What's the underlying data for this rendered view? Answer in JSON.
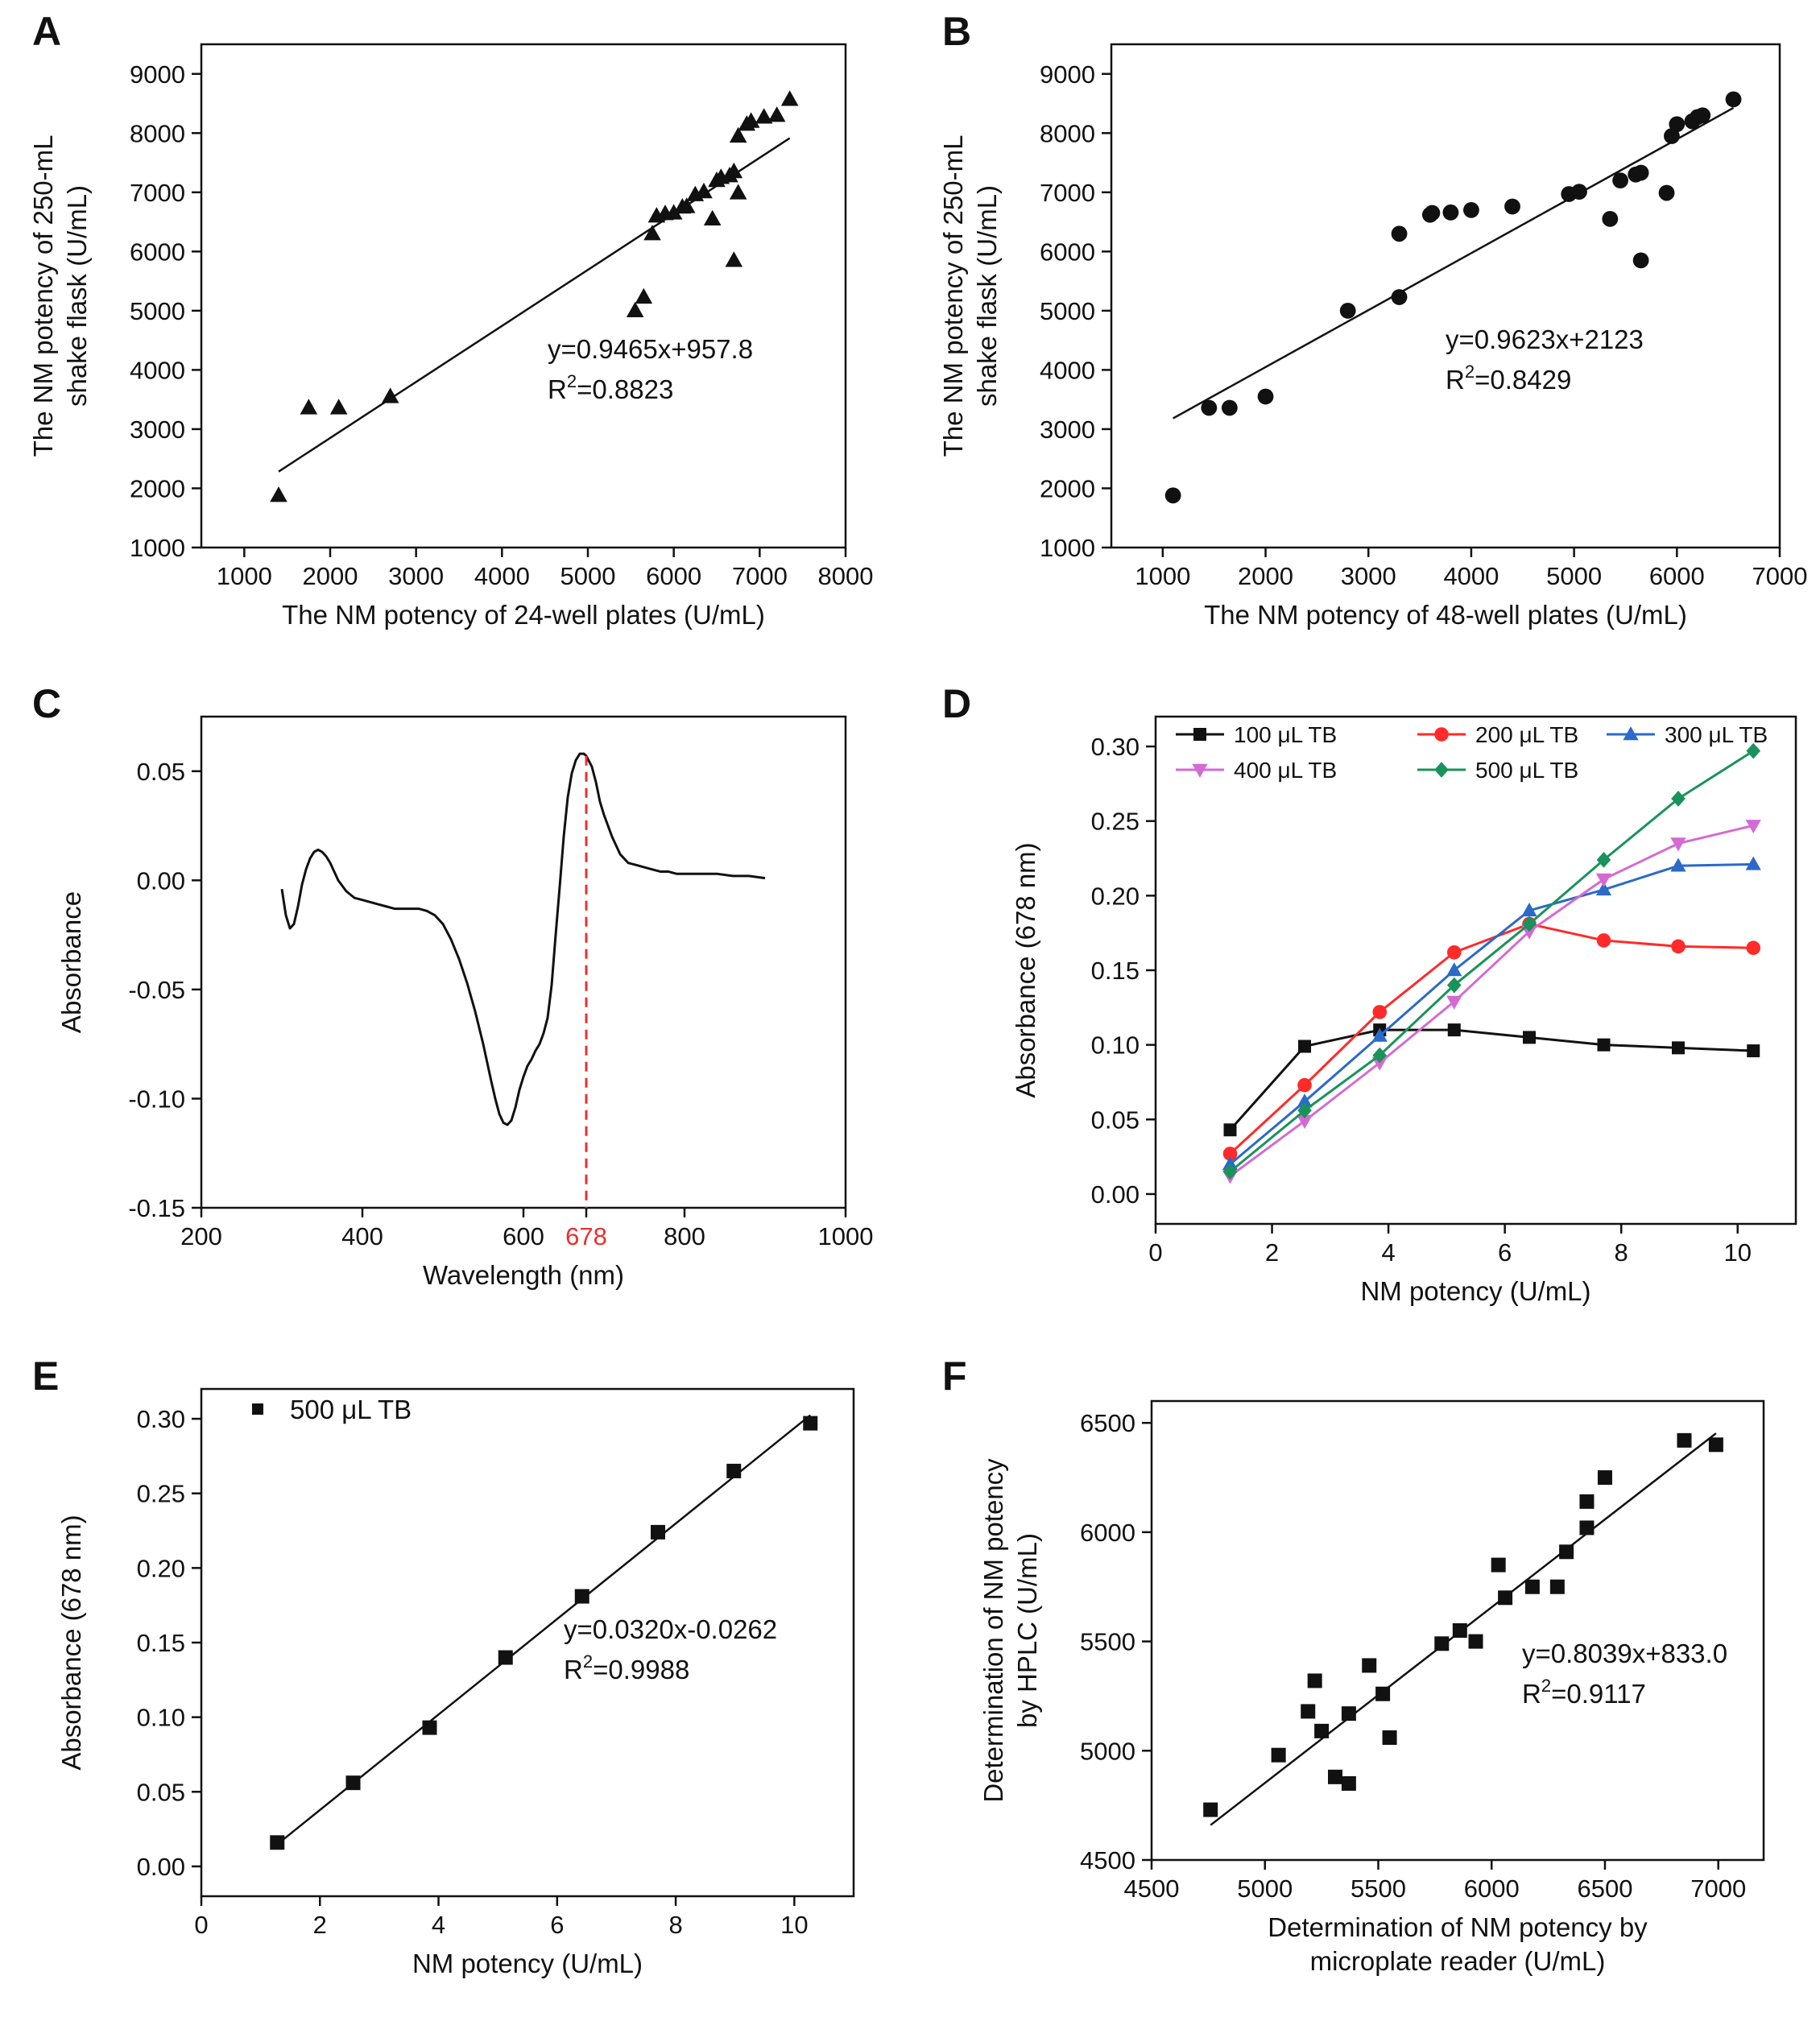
{
  "chart_data": [
    {
      "id": "A",
      "type": "scatter",
      "panel_label": "A",
      "xlabel": "The NM potency of 24-well plates (U/mL)",
      "ylabel": [
        "The NM potency of 250-mL",
        "shake flask (U/mL)"
      ],
      "xlim": [
        500,
        8000
      ],
      "ylim": [
        1000,
        9500
      ],
      "xticks": [
        1000,
        2000,
        3000,
        4000,
        5000,
        6000,
        7000,
        8000
      ],
      "yticks": [
        1000,
        2000,
        3000,
        4000,
        5000,
        6000,
        7000,
        8000,
        9000
      ],
      "marker": "triangle",
      "points": [
        [
          1400,
          1880
        ],
        [
          1750,
          3360
        ],
        [
          2100,
          3360
        ],
        [
          2700,
          3550
        ],
        [
          5550,
          5000
        ],
        [
          5650,
          5230
        ],
        [
          5750,
          6300
        ],
        [
          5800,
          6600
        ],
        [
          5900,
          6640
        ],
        [
          6000,
          6650
        ],
        [
          6100,
          6750
        ],
        [
          6150,
          6760
        ],
        [
          6250,
          6960
        ],
        [
          6350,
          7010
        ],
        [
          6450,
          6550
        ],
        [
          6500,
          7200
        ],
        [
          6550,
          7250
        ],
        [
          6650,
          7280
        ],
        [
          6700,
          7350
        ],
        [
          6700,
          5850
        ],
        [
          6750,
          7950
        ],
        [
          6750,
          6990
        ],
        [
          6850,
          8150
        ],
        [
          6900,
          8200
        ],
        [
          7050,
          8270
        ],
        [
          7200,
          8300
        ],
        [
          7350,
          8570
        ]
      ],
      "fit": {
        "x": [
          1400,
          7350
        ],
        "slope": 0.9465,
        "intercept": 957.8
      },
      "equation": "y=0.9465x+957.8",
      "r2_prefix": "R",
      "r2_sup": "2",
      "r2_value": "=0.8823"
    },
    {
      "id": "B",
      "type": "scatter",
      "panel_label": "B",
      "xlabel": "The NM potency of 48-well plates (U/mL)",
      "ylabel": [
        "The NM potency of 250-mL",
        "shake flask (U/mL)"
      ],
      "xlim": [
        500,
        7000
      ],
      "ylim": [
        1000,
        9500
      ],
      "xticks": [
        1000,
        2000,
        3000,
        4000,
        5000,
        6000,
        7000
      ],
      "yticks": [
        1000,
        2000,
        3000,
        4000,
        5000,
        6000,
        7000,
        8000,
        9000
      ],
      "marker": "circle",
      "points": [
        [
          1100,
          1880
        ],
        [
          1450,
          3360
        ],
        [
          1650,
          3360
        ],
        [
          2000,
          3550
        ],
        [
          2800,
          5000
        ],
        [
          3300,
          5230
        ],
        [
          3300,
          6300
        ],
        [
          3600,
          6620
        ],
        [
          3620,
          6650
        ],
        [
          3800,
          6660
        ],
        [
          4000,
          6700
        ],
        [
          4400,
          6760
        ],
        [
          4950,
          6970
        ],
        [
          5050,
          7010
        ],
        [
          5350,
          6550
        ],
        [
          5450,
          7200
        ],
        [
          5600,
          7300
        ],
        [
          5650,
          7330
        ],
        [
          5650,
          5850
        ],
        [
          5900,
          6990
        ],
        [
          5950,
          7950
        ],
        [
          6000,
          8150
        ],
        [
          6150,
          8200
        ],
        [
          6200,
          8270
        ],
        [
          6250,
          8300
        ],
        [
          6550,
          8570
        ]
      ],
      "fit": {
        "x": [
          1100,
          6550
        ],
        "slope": 0.9623,
        "intercept": 2123
      },
      "equation": "y=0.9623x+2123",
      "r2_prefix": "R",
      "r2_sup": "2",
      "r2_value": "=0.8429"
    },
    {
      "id": "C",
      "type": "line",
      "panel_label": "C",
      "xlabel": "Wavelength (nm)",
      "ylabel": [
        "Absorbance"
      ],
      "xlim": [
        200,
        1000
      ],
      "ylim": [
        -0.15,
        0.075
      ],
      "xticks": [
        200,
        400,
        600,
        678,
        800,
        1000
      ],
      "yticks": [
        -0.15,
        -0.1,
        -0.05,
        0.0,
        0.05
      ],
      "ytick_labels": [
        "-0.15",
        "-0.10",
        "-0.05",
        "0.00",
        "0.05"
      ],
      "highlight": {
        "x": 678,
        "label": "678",
        "color": "#e8312f"
      },
      "line_color": "#111111",
      "x": [
        300,
        305,
        310,
        315,
        320,
        325,
        330,
        335,
        340,
        345,
        350,
        355,
        360,
        365,
        370,
        380,
        390,
        400,
        410,
        420,
        430,
        440,
        450,
        460,
        470,
        480,
        490,
        500,
        510,
        520,
        530,
        540,
        550,
        560,
        565,
        570,
        575,
        580,
        585,
        590,
        595,
        600,
        605,
        610,
        615,
        620,
        625,
        630,
        635,
        640,
        645,
        650,
        655,
        660,
        665,
        670,
        675,
        678,
        685,
        690,
        695,
        700,
        710,
        720,
        730,
        740,
        750,
        760,
        770,
        780,
        790,
        800,
        820,
        840,
        860,
        880,
        900
      ],
      "y": [
        -0.004,
        -0.016,
        -0.022,
        -0.02,
        -0.012,
        -0.002,
        0.005,
        0.01,
        0.013,
        0.014,
        0.013,
        0.011,
        0.008,
        0.004,
        0.0,
        -0.005,
        -0.008,
        -0.009,
        -0.01,
        -0.011,
        -0.012,
        -0.013,
        -0.013,
        -0.013,
        -0.013,
        -0.014,
        -0.016,
        -0.02,
        -0.027,
        -0.036,
        -0.047,
        -0.06,
        -0.075,
        -0.092,
        -0.1,
        -0.107,
        -0.111,
        -0.112,
        -0.11,
        -0.104,
        -0.096,
        -0.09,
        -0.085,
        -0.082,
        -0.078,
        -0.075,
        -0.07,
        -0.063,
        -0.048,
        -0.025,
        -0.003,
        0.02,
        0.038,
        0.049,
        0.055,
        0.058,
        0.058,
        0.057,
        0.052,
        0.045,
        0.036,
        0.03,
        0.02,
        0.012,
        0.008,
        0.007,
        0.006,
        0.005,
        0.004,
        0.004,
        0.003,
        0.003,
        0.003,
        0.003,
        0.002,
        0.002,
        0.001
      ]
    },
    {
      "id": "D",
      "type": "line",
      "panel_label": "D",
      "xlabel": "NM potency (U/mL)",
      "ylabel": [
        "Absorbance (678 nm)"
      ],
      "xlim": [
        0,
        11
      ],
      "ylim": [
        -0.02,
        0.32
      ],
      "xticks": [
        0,
        2,
        4,
        6,
        8,
        10
      ],
      "yticks": [
        0.0,
        0.05,
        0.1,
        0.15,
        0.2,
        0.25,
        0.3
      ],
      "ytick_labels": [
        "0.00",
        "0.05",
        "0.10",
        "0.15",
        "0.20",
        "0.25",
        "0.30"
      ],
      "x": [
        1.28,
        2.56,
        3.85,
        5.13,
        6.42,
        7.7,
        8.98,
        10.27
      ],
      "series": [
        {
          "name": "100 μL TB",
          "color": "#111111",
          "marker": "square",
          "values": [
            0.043,
            0.099,
            0.11,
            0.11,
            0.105,
            0.1,
            0.098,
            0.096
          ]
        },
        {
          "name": "200 μL TB",
          "color": "#ff2a2a",
          "marker": "circle",
          "values": [
            0.027,
            0.073,
            0.122,
            0.162,
            0.181,
            0.17,
            0.166,
            0.165
          ]
        },
        {
          "name": "300 μL TB",
          "color": "#2a6ac8",
          "marker": "triangle",
          "values": [
            0.02,
            0.062,
            0.106,
            0.15,
            0.19,
            0.204,
            0.22,
            0.221
          ]
        },
        {
          "name": "400 μL TB",
          "color": "#d46ad4",
          "marker": "triangle-down",
          "values": [
            0.012,
            0.049,
            0.088,
            0.129,
            0.176,
            0.211,
            0.235,
            0.247
          ]
        },
        {
          "name": "500 μL TB",
          "color": "#19935a",
          "marker": "diamond",
          "values": [
            0.015,
            0.056,
            0.093,
            0.14,
            0.181,
            0.224,
            0.265,
            0.297
          ]
        }
      ]
    },
    {
      "id": "E",
      "type": "scatter",
      "panel_label": "E",
      "xlabel": "NM potency (U/mL)",
      "ylabel": [
        "Absorbance (678 nm)"
      ],
      "xlim": [
        0,
        11
      ],
      "ylim": [
        -0.02,
        0.32
      ],
      "xticks": [
        0,
        2,
        4,
        6,
        8,
        10
      ],
      "yticks": [
        0.0,
        0.05,
        0.1,
        0.15,
        0.2,
        0.25,
        0.3
      ],
      "ytick_labels": [
        "0.00",
        "0.05",
        "0.10",
        "0.15",
        "0.20",
        "0.25",
        "0.30"
      ],
      "marker": "square",
      "legend": "500 μL TB",
      "points": [
        [
          1.28,
          0.016
        ],
        [
          2.56,
          0.056
        ],
        [
          3.85,
          0.093
        ],
        [
          5.13,
          0.14
        ],
        [
          6.42,
          0.181
        ],
        [
          7.7,
          0.224
        ],
        [
          8.98,
          0.265
        ],
        [
          10.27,
          0.297
        ]
      ],
      "fit": {
        "x": [
          1.28,
          10.27
        ],
        "slope": 0.032,
        "intercept": -0.0262
      },
      "equation": "y=0.0320x-0.0262",
      "r2_prefix": "R",
      "r2_sup": "2",
      "r2_value": "=0.9988"
    },
    {
      "id": "F",
      "type": "scatter",
      "panel_label": "F",
      "xlabel": [
        "Determination of NM potency by",
        "microplate reader (U/mL)"
      ],
      "ylabel": [
        "Determination of NM potency",
        "by HPLC (U/mL)"
      ],
      "xlim": [
        4500,
        7200
      ],
      "ylim": [
        4500,
        6600
      ],
      "xticks": [
        4500,
        5000,
        5500,
        6000,
        6500,
        7000
      ],
      "yticks": [
        4500,
        5000,
        5500,
        6000,
        6500
      ],
      "marker": "square",
      "points": [
        [
          4760,
          4730
        ],
        [
          5060,
          4980
        ],
        [
          5190,
          5180
        ],
        [
          5220,
          5320
        ],
        [
          5250,
          5090
        ],
        [
          5310,
          4880
        ],
        [
          5370,
          4850
        ],
        [
          5370,
          5170
        ],
        [
          5460,
          5390
        ],
        [
          5520,
          5260
        ],
        [
          5550,
          5060
        ],
        [
          5780,
          5490
        ],
        [
          5860,
          5550
        ],
        [
          5930,
          5500
        ],
        [
          6030,
          5850
        ],
        [
          6060,
          5700
        ],
        [
          6180,
          5750
        ],
        [
          6290,
          5750
        ],
        [
          6330,
          5910
        ],
        [
          6420,
          6140
        ],
        [
          6420,
          6020
        ],
        [
          6500,
          6250
        ],
        [
          6850,
          6420
        ],
        [
          6990,
          6400
        ]
      ],
      "fit": {
        "x": [
          4760,
          6990
        ],
        "slope": 0.8039,
        "intercept": 833.0
      },
      "equation": "y=0.8039x+833.0",
      "r2_prefix": "R",
      "r2_sup": "2",
      "r2_value": "=0.9117"
    }
  ]
}
